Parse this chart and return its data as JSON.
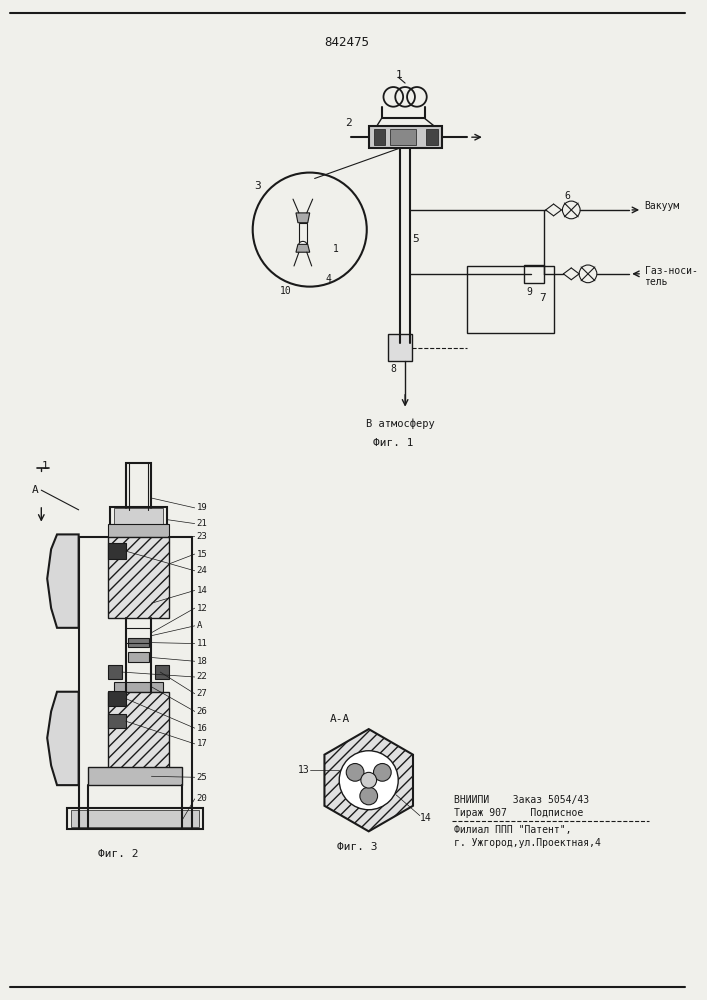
{
  "title": "842475",
  "bg_color": "#f0f0eb",
  "line_color": "#1a1a1a",
  "fig1_label": "Фиг. 1",
  "fig2_label": "Фиг. 2",
  "fig3_label": "Фиг. 3",
  "aa_label": "А-А",
  "a_label": "А",
  "bottom_text1": "ВНИИПИ    Заказ 5054/43",
  "bottom_text2": "Тираж 907    Подписное",
  "bottom_text3": "Филиал ППП \"Патент\",",
  "bottom_text4": "г. Ужгород,ул.Проектная,4",
  "vakuum_label": "Вакуум",
  "gaz_label1": "Газ-носи-",
  "gaz_label2": "тель",
  "vatmos_label": "В атмосферу"
}
